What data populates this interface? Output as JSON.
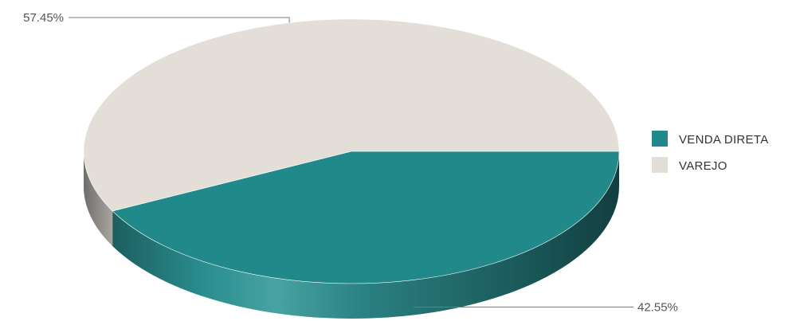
{
  "chart_data": {
    "type": "pie",
    "categories": [
      "VENDA DIRETA",
      "VAREJO"
    ],
    "values": [
      42.55,
      57.45
    ],
    "value_labels": [
      "42.55%",
      "57.45%"
    ],
    "colors": [
      "#21898a",
      "#e3dfd8"
    ],
    "legend_position": "right",
    "style": "3d-pie"
  }
}
